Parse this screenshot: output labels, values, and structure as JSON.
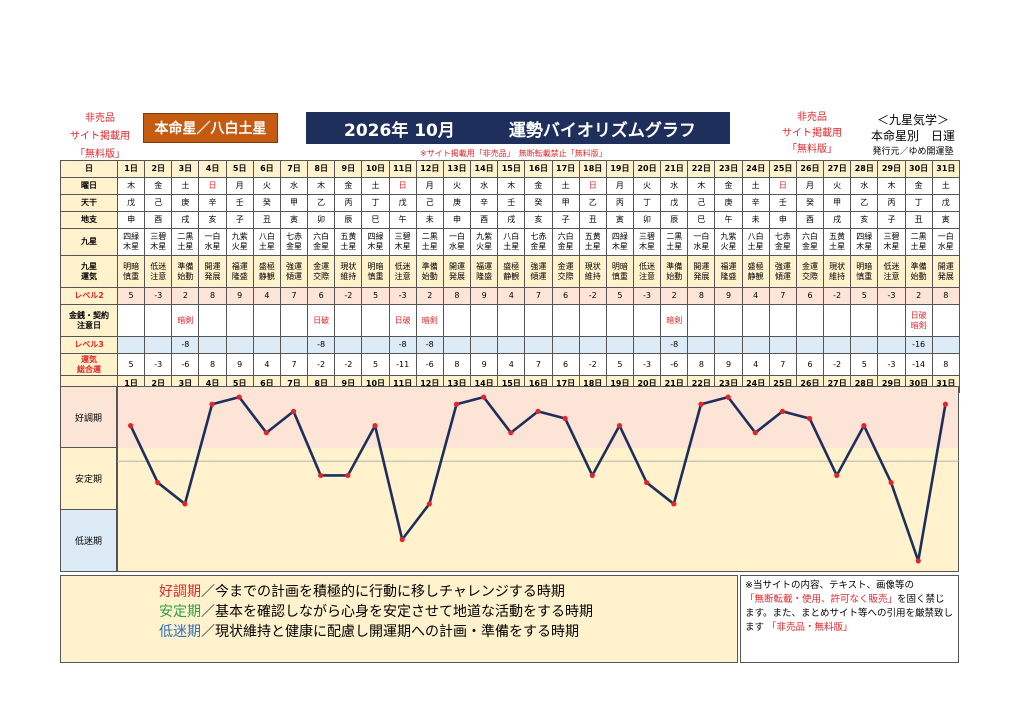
{
  "header": {
    "left_notice": [
      "非売品",
      "サイト掲載用",
      "「無料版」"
    ],
    "honmei_label": "本命星／八白土星",
    "title_year_month": "2026年 10月",
    "title_text": "運勢バイオリズムグラフ",
    "right_notice": [
      "非売品",
      "サイト掲載用",
      "「無料版」"
    ],
    "kyusei_title": "＜九星気学＞",
    "kyusei_sub": "本命星別　日運",
    "publisher": "発行元／ゆめ開運塾",
    "banner_notice": "※サイト掲載用「非売品」　無断転載禁止「無料版」"
  },
  "row_labels": {
    "day": "日",
    "weekday": "曜日",
    "tenkan": "天干",
    "chishi": "地支",
    "kyusei": "九星",
    "unki": "九星\n運気",
    "level2": "レベル2",
    "caution": "金銭・契約\n注意日",
    "level3": "レベル3",
    "total": "運気\n総合運"
  },
  "days": [
    {
      "d": "1日",
      "w": "木",
      "t": "戊",
      "c": "申",
      "s": "四緑\n木星",
      "u": "明暗\n慎重",
      "l2": 5,
      "cn": "",
      "l3": "",
      "tot": 5
    },
    {
      "d": "2日",
      "w": "金",
      "t": "己",
      "c": "酉",
      "s": "三碧\n木星",
      "u": "低迷\n注意",
      "l2": -3,
      "cn": "",
      "l3": "",
      "tot": -3
    },
    {
      "d": "3日",
      "w": "土",
      "t": "庚",
      "c": "戌",
      "s": "二黒\n土星",
      "u": "準備\n始動",
      "l2": 2,
      "cn": "暗剣",
      "l3": -8,
      "tot": -6
    },
    {
      "d": "4日",
      "w": "日",
      "t": "辛",
      "c": "亥",
      "s": "一白\n水星",
      "u": "開運\n発展",
      "l2": 8,
      "cn": "",
      "l3": "",
      "tot": 8
    },
    {
      "d": "5日",
      "w": "月",
      "t": "壬",
      "c": "子",
      "s": "九紫\n火星",
      "u": "福運\n隆盛",
      "l2": 9,
      "cn": "",
      "l3": "",
      "tot": 9
    },
    {
      "d": "6日",
      "w": "火",
      "t": "癸",
      "c": "丑",
      "s": "八白\n土星",
      "u": "盛極\n静観",
      "l2": 4,
      "cn": "",
      "l3": "",
      "tot": 4
    },
    {
      "d": "7日",
      "w": "水",
      "t": "甲",
      "c": "寅",
      "s": "七赤\n金星",
      "u": "強運\n傾運",
      "l2": 7,
      "cn": "",
      "l3": "",
      "tot": 7
    },
    {
      "d": "8日",
      "w": "木",
      "t": "乙",
      "c": "卯",
      "s": "六白\n金星",
      "u": "金運\n交際",
      "l2": 6,
      "cn": "日破",
      "l3": -8,
      "tot": -2
    },
    {
      "d": "9日",
      "w": "金",
      "t": "丙",
      "c": "辰",
      "s": "五黄\n土星",
      "u": "現状\n維持",
      "l2": -2,
      "cn": "",
      "l3": "",
      "tot": -2
    },
    {
      "d": "10日",
      "w": "土",
      "t": "丁",
      "c": "巳",
      "s": "四緑\n木星",
      "u": "明暗\n慎重",
      "l2": 5,
      "cn": "",
      "l3": "",
      "tot": 5
    },
    {
      "d": "11日",
      "w": "日",
      "t": "戊",
      "c": "午",
      "s": "三碧\n木星",
      "u": "低迷\n注意",
      "l2": -3,
      "cn": "日破",
      "l3": -8,
      "tot": -11
    },
    {
      "d": "12日",
      "w": "月",
      "t": "己",
      "c": "未",
      "s": "二黒\n土星",
      "u": "準備\n始動",
      "l2": 2,
      "cn": "暗剣",
      "l3": -8,
      "tot": -6
    },
    {
      "d": "13日",
      "w": "火",
      "t": "庚",
      "c": "申",
      "s": "一白\n水星",
      "u": "開運\n発展",
      "l2": 8,
      "cn": "",
      "l3": "",
      "tot": 8
    },
    {
      "d": "14日",
      "w": "水",
      "t": "辛",
      "c": "酉",
      "s": "九紫\n火星",
      "u": "福運\n隆盛",
      "l2": 9,
      "cn": "",
      "l3": "",
      "tot": 9
    },
    {
      "d": "15日",
      "w": "木",
      "t": "壬",
      "c": "戌",
      "s": "八白\n土星",
      "u": "盛極\n静観",
      "l2": 4,
      "cn": "",
      "l3": "",
      "tot": 4
    },
    {
      "d": "16日",
      "w": "金",
      "t": "癸",
      "c": "亥",
      "s": "七赤\n金星",
      "u": "強運\n傾運",
      "l2": 7,
      "cn": "",
      "l3": "",
      "tot": 7
    },
    {
      "d": "17日",
      "w": "土",
      "t": "甲",
      "c": "子",
      "s": "六白\n金星",
      "u": "金運\n交際",
      "l2": 6,
      "cn": "",
      "l3": "",
      "tot": 6
    },
    {
      "d": "18日",
      "w": "日",
      "t": "乙",
      "c": "丑",
      "s": "五黄\n土星",
      "u": "現状\n維持",
      "l2": -2,
      "cn": "",
      "l3": "",
      "tot": -2
    },
    {
      "d": "19日",
      "w": "月",
      "t": "丙",
      "c": "寅",
      "s": "四緑\n木星",
      "u": "明暗\n慎重",
      "l2": 5,
      "cn": "",
      "l3": "",
      "tot": 5
    },
    {
      "d": "20日",
      "w": "火",
      "t": "丁",
      "c": "卯",
      "s": "三碧\n木星",
      "u": "低迷\n注意",
      "l2": -3,
      "cn": "",
      "l3": "",
      "tot": -3
    },
    {
      "d": "21日",
      "w": "水",
      "t": "戊",
      "c": "辰",
      "s": "二黒\n土星",
      "u": "準備\n始動",
      "l2": 2,
      "cn": "暗剣",
      "l3": -8,
      "tot": -6
    },
    {
      "d": "22日",
      "w": "木",
      "t": "己",
      "c": "巳",
      "s": "一白\n水星",
      "u": "開運\n発展",
      "l2": 8,
      "cn": "",
      "l3": "",
      "tot": 8
    },
    {
      "d": "23日",
      "w": "金",
      "t": "庚",
      "c": "午",
      "s": "九紫\n火星",
      "u": "福運\n隆盛",
      "l2": 9,
      "cn": "",
      "l3": "",
      "tot": 9
    },
    {
      "d": "24日",
      "w": "土",
      "t": "辛",
      "c": "未",
      "s": "八白\n土星",
      "u": "盛極\n静観",
      "l2": 4,
      "cn": "",
      "l3": "",
      "tot": 4
    },
    {
      "d": "25日",
      "w": "日",
      "t": "壬",
      "c": "申",
      "s": "七赤\n金星",
      "u": "強運\n傾運",
      "l2": 7,
      "cn": "",
      "l3": "",
      "tot": 7
    },
    {
      "d": "26日",
      "w": "月",
      "t": "癸",
      "c": "酉",
      "s": "六白\n金星",
      "u": "金運\n交際",
      "l2": 6,
      "cn": "",
      "l3": "",
      "tot": 6
    },
    {
      "d": "27日",
      "w": "火",
      "t": "甲",
      "c": "戌",
      "s": "五黄\n土星",
      "u": "現状\n維持",
      "l2": -2,
      "cn": "",
      "l3": "",
      "tot": -2
    },
    {
      "d": "28日",
      "w": "水",
      "t": "乙",
      "c": "亥",
      "s": "四緑\n木星",
      "u": "明暗\n慎重",
      "l2": 5,
      "cn": "",
      "l3": "",
      "tot": 5
    },
    {
      "d": "29日",
      "w": "木",
      "t": "丙",
      "c": "子",
      "s": "三碧\n木星",
      "u": "低迷\n注意",
      "l2": -3,
      "cn": "",
      "l3": "",
      "tot": -3
    },
    {
      "d": "30日",
      "w": "金",
      "t": "丁",
      "c": "丑",
      "s": "二黒\n土星",
      "u": "準備\n始動",
      "l2": 2,
      "cn": "日破\n暗剣",
      "l3": -16,
      "tot": -14
    },
    {
      "d": "31日",
      "w": "土",
      "t": "戊",
      "c": "寅",
      "s": "一白\n水星",
      "u": "開運\n発展",
      "l2": 8,
      "cn": "",
      "l3": "",
      "tot": 8
    }
  ],
  "bands": {
    "good": "好調期",
    "stable": "安定期",
    "low": "低迷期"
  },
  "legend": [
    {
      "key": "好調期",
      "text": "／今までの計画を積極的に行動に移しチャレンジする時期"
    },
    {
      "key": "安定期",
      "text": "／基本を確認しながら心身を安定させて地道な活動をする時期"
    },
    {
      "key": "低迷期",
      "text": "／現状維持と健康に配慮し開運期への計画・準備をする時期"
    }
  ],
  "note": {
    "line1": "※当サイトの内容、テキスト、画像等の",
    "red1": "「無断転載・使用、許可なく販売」",
    "line2": "を固く禁じます。また、まとめサイト等への引用を厳禁致します",
    "red2": "「非売品・無料版」"
  },
  "colors": {
    "navy": "#1f2f5c",
    "brown": "#c55a11",
    "cream": "#fff2cc",
    "pink": "#fce4d6",
    "blue": "#ddebf7",
    "line": "#1f2f5c",
    "dot": "#e0262b"
  },
  "chart_data": {
    "type": "line",
    "x": [
      "1日",
      "2日",
      "3日",
      "4日",
      "5日",
      "6日",
      "7日",
      "8日",
      "9日",
      "10日",
      "11日",
      "12日",
      "13日",
      "14日",
      "15日",
      "16日",
      "17日",
      "18日",
      "19日",
      "20日",
      "21日",
      "22日",
      "23日",
      "24日",
      "25日",
      "26日",
      "27日",
      "28日",
      "29日",
      "30日",
      "31日"
    ],
    "series": [
      {
        "values": [
          5,
          -3,
          -6,
          8,
          9,
          4,
          7,
          -2,
          -2,
          5,
          -11,
          -6,
          8,
          9,
          4,
          7,
          6,
          -2,
          5,
          -3,
          -6,
          8,
          9,
          4,
          7,
          6,
          -2,
          5,
          -3,
          -14,
          8
        ]
      }
    ],
    "ylim": [
      -15,
      10
    ],
    "bands": [
      "好調期",
      "安定期",
      "低迷期"
    ],
    "grid": false
  }
}
